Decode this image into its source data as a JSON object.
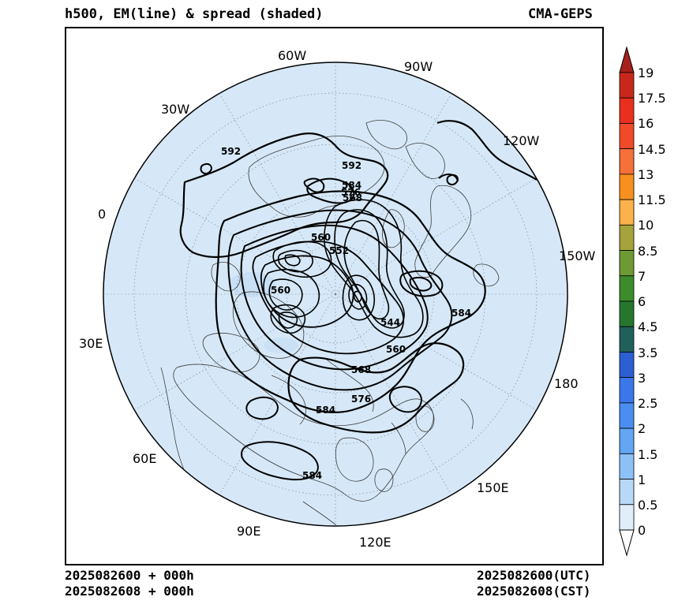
{
  "header": {
    "title": "h500, EM(line) & spread (shaded)",
    "model": "CMA-GEPS"
  },
  "map": {
    "projection": "north polar stereographic",
    "disk_fill": "#d6e8f7",
    "longitude_labels": [
      "60W",
      "90W",
      "30W",
      "120W",
      "0",
      "150W",
      "30E",
      "180",
      "60E",
      "150E",
      "90E",
      "120E"
    ],
    "contour_labels": [
      "592",
      "592",
      "584",
      "576",
      "568",
      "560",
      "552",
      "560",
      "544",
      "560",
      "568",
      "576",
      "584",
      "584",
      "584"
    ]
  },
  "colorbar": {
    "labels": [
      "19",
      "17.5",
      "16",
      "14.5",
      "13",
      "11.5",
      "10",
      "8.5",
      "7",
      "6",
      "4.5",
      "3.5",
      "3",
      "2.5",
      "2",
      "1.5",
      "1",
      "0.5",
      "0"
    ],
    "colors": [
      "#a8201a",
      "#c8281c",
      "#e9301e",
      "#f04a28",
      "#f6703a",
      "#f7901e",
      "#fcb24a",
      "#a6a23c",
      "#6e9a34",
      "#3c8c2c",
      "#26762e",
      "#20605a",
      "#2b5fd2",
      "#3a78ea",
      "#4a8ef0",
      "#62a6f4",
      "#8cc0f6",
      "#b8d8f8",
      "#e0eefa"
    ]
  },
  "footer": {
    "left_line1": "2025082600 + 000h",
    "left_line2": "2025082608 + 000h",
    "right_line1": "2025082600(UTC)",
    "right_line2": "2025082608(CST)"
  }
}
